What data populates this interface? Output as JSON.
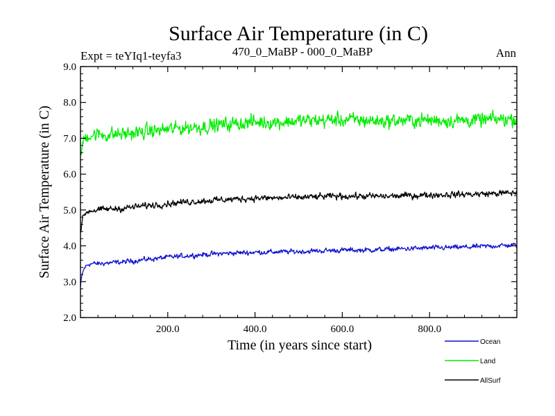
{
  "chart_data": {
    "type": "line",
    "title": "Surface Air Temperature (in C)",
    "subtitle_left": "Expt = teYIq1-teyfa3",
    "subtitle_center": "470_0_MaBP - 000_0_MaBP",
    "subtitle_right": "Ann",
    "xlabel": "Time (in years since start)",
    "ylabel": "Surface Air Temperature (in C)",
    "xlim": [
      0,
      1000
    ],
    "ylim": [
      2.0,
      9.0
    ],
    "xticks": [
      200,
      400,
      600,
      800
    ],
    "xtick_labels": [
      "200.0",
      "400.0",
      "600.0",
      "800.0"
    ],
    "yticks": [
      2,
      3,
      4,
      5,
      6,
      7,
      8,
      9
    ],
    "ytick_labels": [
      "2.0",
      "3.0",
      "4.0",
      "5.0",
      "6.0",
      "7.0",
      "8.0",
      "9.0"
    ],
    "legend_position": "bottom-right",
    "series": [
      {
        "name": "Ocean",
        "color": "#1010d0",
        "x": [
          0,
          2,
          5,
          10,
          20,
          40,
          60,
          100,
          150,
          200,
          250,
          300,
          350,
          400,
          450,
          500,
          550,
          600,
          650,
          700,
          750,
          800,
          850,
          900,
          950,
          1000
        ],
        "values": [
          2.85,
          3.05,
          3.25,
          3.4,
          3.5,
          3.5,
          3.52,
          3.55,
          3.62,
          3.68,
          3.73,
          3.77,
          3.8,
          3.82,
          3.83,
          3.84,
          3.86,
          3.88,
          3.88,
          3.9,
          3.92,
          3.94,
          3.95,
          3.97,
          4.0,
          4.02
        ],
        "noise": 0.07
      },
      {
        "name": "Land",
        "color": "#00ee00",
        "x": [
          0,
          2,
          5,
          10,
          20,
          40,
          60,
          100,
          150,
          200,
          250,
          300,
          350,
          400,
          450,
          500,
          550,
          600,
          650,
          700,
          750,
          800,
          850,
          900,
          950,
          1000
        ],
        "values": [
          6.4,
          6.6,
          6.85,
          7.0,
          7.1,
          7.1,
          7.1,
          7.12,
          7.18,
          7.25,
          7.3,
          7.35,
          7.4,
          7.45,
          7.45,
          7.48,
          7.5,
          7.52,
          7.5,
          7.48,
          7.5,
          7.5,
          7.5,
          7.5,
          7.52,
          7.55
        ],
        "noise": 0.2
      },
      {
        "name": "AllSurf",
        "color": "#000000",
        "x": [
          0,
          2,
          5,
          10,
          20,
          40,
          60,
          100,
          150,
          200,
          250,
          300,
          350,
          400,
          450,
          500,
          550,
          600,
          650,
          700,
          750,
          800,
          850,
          900,
          950,
          1000
        ],
        "values": [
          4.35,
          4.55,
          4.75,
          4.9,
          4.98,
          5.0,
          5.02,
          5.05,
          5.12,
          5.18,
          5.23,
          5.27,
          5.3,
          5.33,
          5.33,
          5.35,
          5.37,
          5.39,
          5.38,
          5.38,
          5.4,
          5.42,
          5.43,
          5.44,
          5.46,
          5.48
        ],
        "noise": 0.09
      }
    ]
  }
}
